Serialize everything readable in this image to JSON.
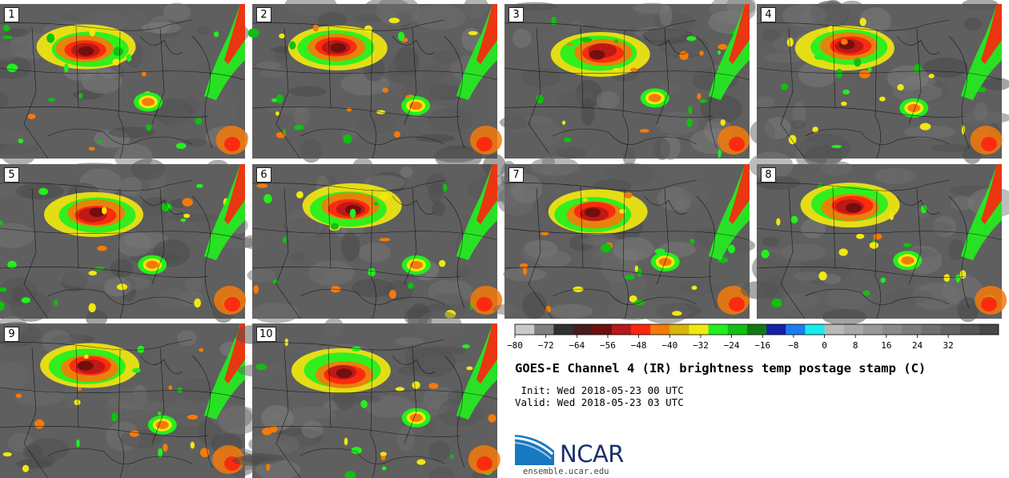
{
  "figure": {
    "title": "GOES-E Channel 4 (IR) brightness temp postage stamp (C)",
    "init": " Init: Wed 2018-05-23 00 UTC",
    "valid": "Valid: Wed 2018-05-23 03 UTC"
  },
  "panels": [
    {
      "label": "1"
    },
    {
      "label": "2"
    },
    {
      "label": "3"
    },
    {
      "label": "4"
    },
    {
      "label": "5"
    },
    {
      "label": "6"
    },
    {
      "label": "7"
    },
    {
      "label": "8"
    },
    {
      "label": "9"
    },
    {
      "label": "10"
    }
  ],
  "colorbar": {
    "min": -80,
    "max": 40,
    "step": 5,
    "ticks": [
      "−80",
      "−72",
      "−64",
      "−56",
      "−48",
      "−40",
      "−32",
      "−24",
      "−16",
      "−8",
      "0",
      "8",
      "16",
      "24",
      "32"
    ],
    "colors": [
      "#c9c9c9",
      "#7f7f7f",
      "#303030",
      "#4a1b1b",
      "#6e0e0e",
      "#b81818",
      "#ff2410",
      "#f57a0a",
      "#d9b20a",
      "#f0e810",
      "#22f01e",
      "#10c010",
      "#107a10",
      "#1620a8",
      "#1a7cf0",
      "#16ecec",
      "#b9b9b9",
      "#a8a8a8",
      "#989898",
      "#8a8a8a",
      "#7d7d7d",
      "#6f6f6f",
      "#626262",
      "#545454",
      "#474747"
    ]
  },
  "map_style": {
    "land": "#5f5f5f",
    "border": "#000000",
    "storm_colors": [
      "#f0e810",
      "#22f01e",
      "#10c010",
      "#f57a0a",
      "#ff2410",
      "#b81818",
      "#6e0e0e",
      "#16ecec",
      "#1a7cf0"
    ]
  },
  "logo": {
    "text": "NCAR",
    "url": "ensemble.ucar.edu"
  }
}
